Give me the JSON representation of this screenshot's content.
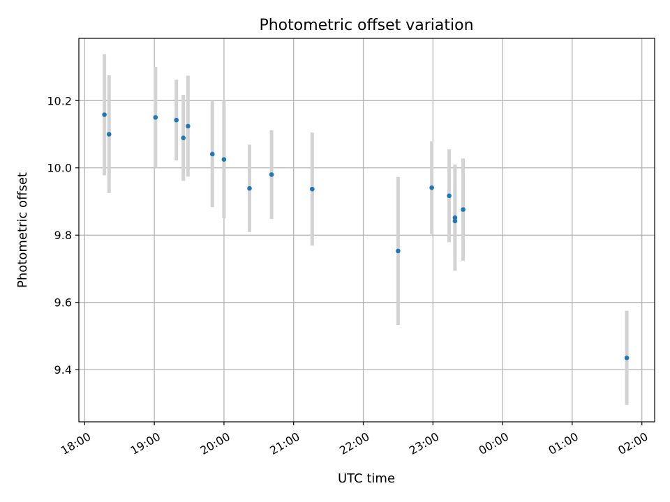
{
  "chart_data": {
    "type": "scatter",
    "title": "Photometric offset variation",
    "xlabel": "UTC time",
    "ylabel": "Photometric offset",
    "xlim": [
      "17:55",
      "02:11"
    ],
    "ylim": [
      9.245,
      10.385
    ],
    "x_ticks": [
      "18:00",
      "19:00",
      "20:00",
      "21:00",
      "22:00",
      "23:00",
      "00:00",
      "01:00",
      "02:00"
    ],
    "y_ticks": [
      9.4,
      9.6,
      9.8,
      10.0,
      10.2
    ],
    "grid": true,
    "marker_color": "#1f77b4",
    "errorbar_color": "#d3d3d3",
    "points": [
      {
        "t": "18:17",
        "y": 10.158,
        "err": 0.18
      },
      {
        "t": "18:21",
        "y": 10.1,
        "err": 0.175
      },
      {
        "t": "19:01",
        "y": 10.15,
        "err": 0.15
      },
      {
        "t": "19:19",
        "y": 10.142,
        "err": 0.12
      },
      {
        "t": "19:25",
        "y": 10.089,
        "err": 0.128
      },
      {
        "t": "19:29",
        "y": 10.124,
        "err": 0.15
      },
      {
        "t": "19:50",
        "y": 10.041,
        "err": 0.158
      },
      {
        "t": "20:00",
        "y": 10.025,
        "err": 0.175
      },
      {
        "t": "20:22",
        "y": 9.939,
        "err": 0.13
      },
      {
        "t": "20:41",
        "y": 9.98,
        "err": 0.132
      },
      {
        "t": "21:16",
        "y": 9.937,
        "err": 0.168
      },
      {
        "t": "22:30",
        "y": 9.753,
        "err": 0.22
      },
      {
        "t": "22:59",
        "y": 9.941,
        "err": 0.138
      },
      {
        "t": "23:14",
        "y": 9.917,
        "err": 0.138
      },
      {
        "t": "23:19",
        "y": 9.852,
        "err": 0.158
      },
      {
        "t": "23:19",
        "y": 9.842,
        "err": 0.105
      },
      {
        "t": "23:26",
        "y": 9.876,
        "err": 0.152
      },
      {
        "t": "01:47",
        "y": 9.435,
        "err": 0.14
      }
    ]
  }
}
